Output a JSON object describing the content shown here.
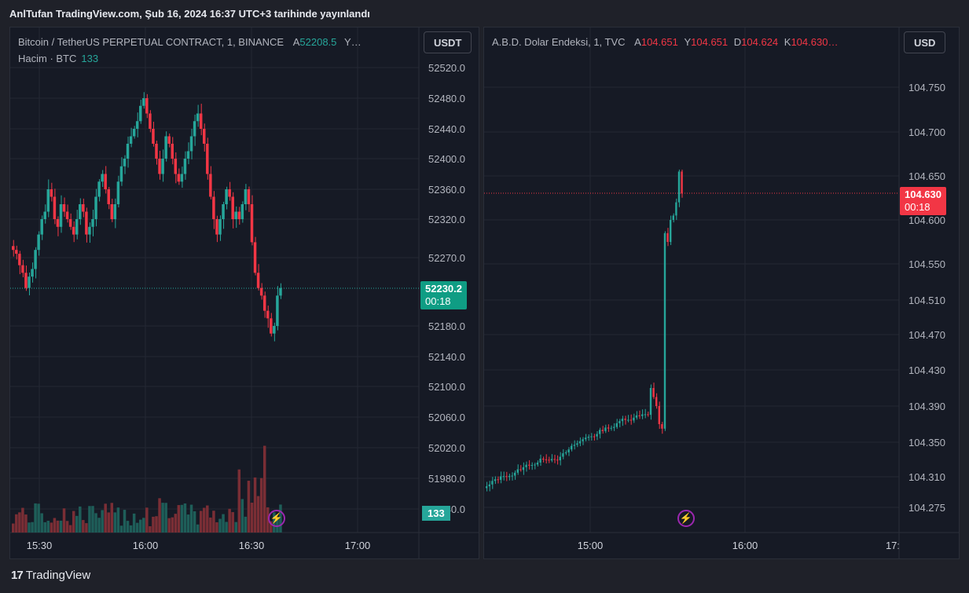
{
  "caption": "AnlTufan TradingView.com, Şub 16, 2024 16:37 UTC+3 tarihinde yayınlandı",
  "footer": {
    "logo_icon": "tradingview-logo-icon",
    "brand": "TradingView"
  },
  "left": {
    "title": "Bitcoin / TetherUS PERPETUAL CONTRACT, 1, BINANCE",
    "ohlc_label_o": "A",
    "ohlc_value_o": "52208.5",
    "ohlc_more": "Y…",
    "volume_label": "Hacim · BTC",
    "volume_value": "133",
    "currency": "USDT",
    "last_price": "52230.2",
    "countdown": "00:18",
    "vol_tag": "133",
    "y_ticks": [
      "52520.0",
      "52480.0",
      "52440.0",
      "52400.0",
      "52360.0",
      "52320.0",
      "52270.0",
      "52180.0",
      "52140.0",
      "52100.0",
      "52060.0",
      "52020.0",
      "51980.0",
      "51940.0"
    ],
    "x_ticks": [
      "15:30",
      "16:00",
      "16:30",
      "17:00"
    ],
    "colors": {
      "up": "#26a69a",
      "down": "#f23645",
      "vol_up": "#1e5e59",
      "vol_down": "#7a2e35"
    }
  },
  "right": {
    "title": "A.B.D. Dolar Endeksi, 1, TVC",
    "o_label": "A",
    "o_value": "104.651",
    "h_label": "Y",
    "h_value": "104.651",
    "l_label": "D",
    "l_value": "104.624",
    "c_label": "K",
    "c_value": "104.630…",
    "currency": "USD",
    "last_price": "104.630",
    "countdown": "00:18",
    "y_ticks": [
      "104.750",
      "104.700",
      "104.650",
      "104.600",
      "104.550",
      "104.510",
      "104.470",
      "104.430",
      "104.390",
      "104.350",
      "104.310",
      "104.275"
    ],
    "x_ticks": [
      "15:00",
      "16:00",
      "17:"
    ]
  }
}
